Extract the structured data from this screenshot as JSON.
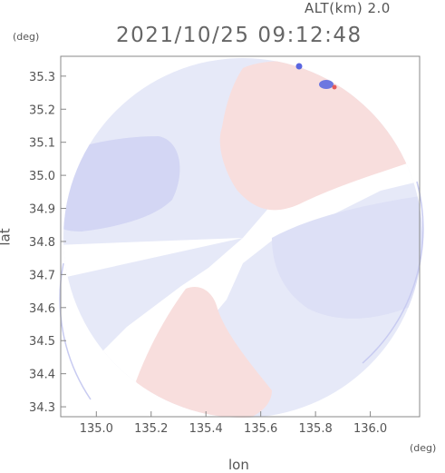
{
  "header": {
    "alt_label": "ALT(km) 2.0",
    "timestamp": "2021/10/25 09:12:48"
  },
  "axes": {
    "x_unit": "(deg)",
    "y_unit": "(deg)",
    "xlabel": "lon",
    "ylabel": "lat",
    "x_ticks": [
      "135.0",
      "135.2",
      "135.4",
      "135.6",
      "135.8",
      "136.0"
    ],
    "y_ticks": [
      "35.3",
      "35.2",
      "35.1",
      "35.0",
      "34.9",
      "34.8",
      "34.7",
      "34.6",
      "34.5",
      "34.4",
      "34.3"
    ],
    "xlim": [
      134.87,
      136.18
    ],
    "ylim": [
      34.27,
      35.36
    ]
  },
  "colors": {
    "receding": "#f7dcdc",
    "approaching": "#e3e6f8",
    "strong_approaching": "#c9cdf1",
    "frame": "#888888"
  }
}
